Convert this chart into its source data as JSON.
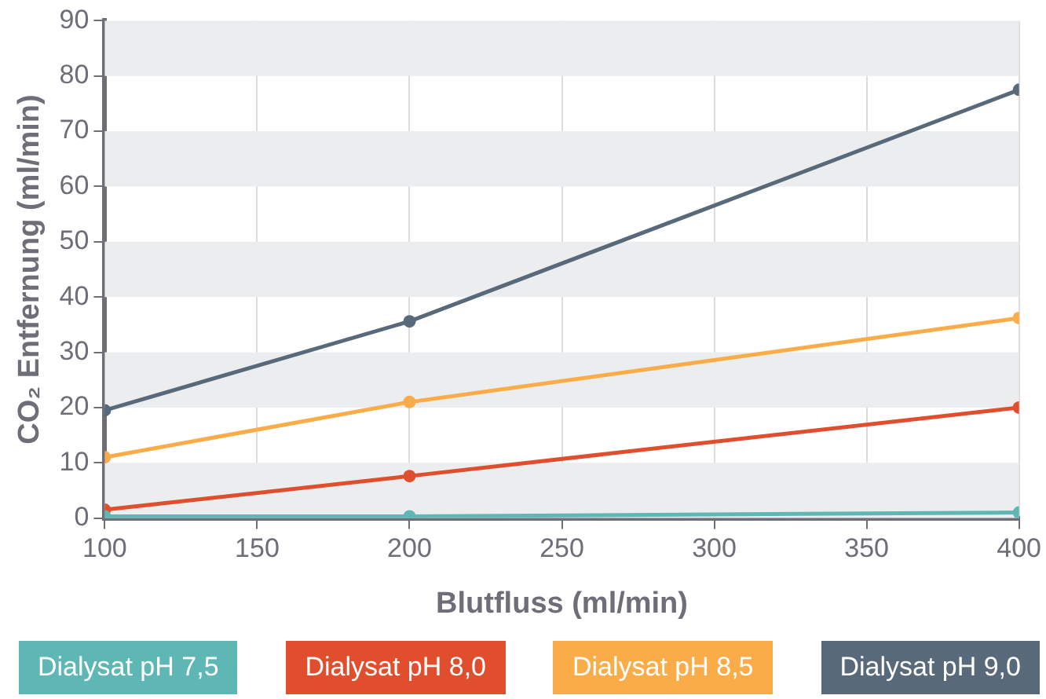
{
  "chart_data": {
    "type": "line",
    "xlabel": "Blutfluss (ml/min)",
    "ylabel": "CO₂ Entfernung (ml/min)",
    "x": [
      100,
      200,
      400
    ],
    "series": [
      {
        "name": "Dialysat pH 7,5",
        "color": "#5fb7b5",
        "values": [
          0.3,
          0.3,
          1
        ]
      },
      {
        "name": "Dialysat pH 8,0",
        "color": "#e04e2e",
        "values": [
          1.5,
          7.6,
          20
        ]
      },
      {
        "name": "Dialysat pH 8,5",
        "color": "#f9ac47",
        "values": [
          11,
          21,
          36.2
        ]
      },
      {
        "name": "Dialysat pH 9,0",
        "color": "#586a7a",
        "values": [
          19.5,
          35.6,
          77.5
        ]
      }
    ],
    "xlim": [
      100,
      400
    ],
    "xticks": [
      100,
      150,
      200,
      250,
      300,
      350,
      400
    ],
    "ylim": [
      0,
      90
    ],
    "yticks": [
      0,
      10,
      20,
      30,
      40,
      50,
      60,
      70,
      80,
      90
    ],
    "grid": true,
    "legend": "bottom",
    "marker": "circle",
    "line_style": "solid"
  }
}
